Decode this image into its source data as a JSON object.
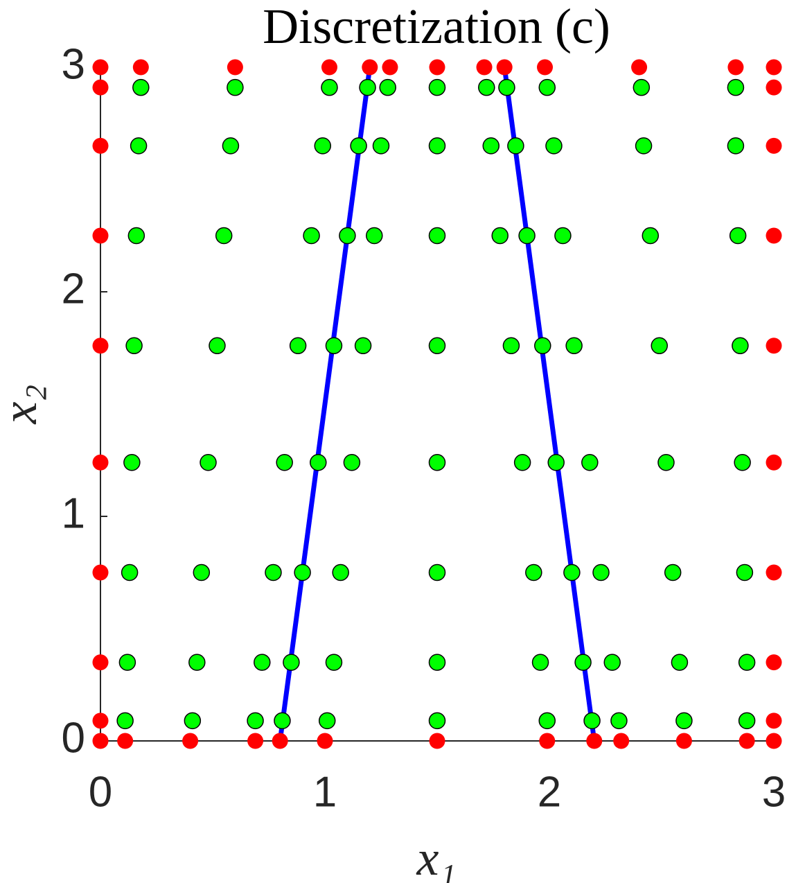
{
  "chart_data": {
    "type": "scatter",
    "title": "Discretization (c)",
    "x_label": "x₁",
    "y_label": "x₂",
    "xlim": [
      0,
      3
    ],
    "ylim": [
      0,
      3
    ],
    "xticks": [
      0,
      1,
      2,
      3
    ],
    "yticks": [
      0,
      1,
      2,
      3
    ],
    "series": [
      {
        "color": "#ff0000",
        "mode": "markers",
        "x": [
          0,
          0.11,
          0.4,
          0.69,
          0.8,
          1,
          1.5,
          1.99,
          2.2,
          2.32,
          2.6,
          2.88,
          3,
          0,
          0.18,
          0.6,
          1.02,
          1.2,
          1.29,
          1.5,
          1.71,
          1.8,
          1.98,
          2.4,
          2.83,
          3,
          0,
          0,
          0,
          0,
          0,
          0,
          0,
          0,
          3,
          3,
          3,
          3,
          3,
          3,
          3,
          3
        ],
        "y": [
          0,
          0,
          0,
          0,
          0,
          0,
          0,
          0,
          0,
          0,
          0,
          0,
          0,
          3,
          3,
          3,
          3,
          3,
          3,
          3,
          3,
          3,
          3,
          3,
          3,
          3,
          2.91,
          2.65,
          2.25,
          1.76,
          1.24,
          0.75,
          0.35,
          0.09,
          2.91,
          2.65,
          2.25,
          1.76,
          1.24,
          0.75,
          0.35,
          0.09
        ]
      },
      {
        "color": "#00ff00",
        "mode": "markers",
        "x": [
          0.18,
          0.6,
          1.02,
          1.19,
          1.28,
          1.5,
          1.72,
          1.81,
          1.99,
          2.41,
          2.83,
          0.17,
          0.58,
          0.99,
          1.15,
          1.25,
          1.5,
          1.74,
          1.85,
          2.02,
          2.42,
          2.83,
          0.16,
          0.55,
          0.94,
          1.1,
          1.22,
          1.5,
          1.78,
          1.9,
          2.06,
          2.45,
          2.84,
          0.15,
          0.52,
          0.88,
          1.04,
          1.17,
          1.5,
          1.83,
          1.97,
          2.11,
          2.49,
          2.85,
          0.14,
          0.48,
          0.82,
          0.97,
          1.12,
          1.5,
          1.88,
          2.03,
          2.18,
          2.52,
          2.86,
          0.13,
          0.45,
          0.77,
          0.9,
          1.07,
          1.5,
          1.93,
          2.1,
          2.23,
          2.55,
          2.87,
          0.12,
          0.43,
          0.72,
          0.85,
          1.04,
          1.5,
          1.96,
          2.15,
          2.28,
          2.58,
          2.88,
          0.11,
          0.41,
          0.69,
          0.81,
          1.01,
          1.5,
          1.99,
          2.19,
          2.31,
          2.6,
          2.88
        ],
        "y": [
          2.91,
          2.91,
          2.91,
          2.91,
          2.91,
          2.91,
          2.91,
          2.91,
          2.91,
          2.91,
          2.91,
          2.65,
          2.65,
          2.65,
          2.65,
          2.65,
          2.65,
          2.65,
          2.65,
          2.65,
          2.65,
          2.65,
          2.25,
          2.25,
          2.25,
          2.25,
          2.25,
          2.25,
          2.25,
          2.25,
          2.25,
          2.25,
          2.25,
          1.76,
          1.76,
          1.76,
          1.76,
          1.76,
          1.76,
          1.76,
          1.76,
          1.76,
          1.76,
          1.76,
          1.24,
          1.24,
          1.24,
          1.24,
          1.24,
          1.24,
          1.24,
          1.24,
          1.24,
          1.24,
          1.24,
          0.75,
          0.75,
          0.75,
          0.75,
          0.75,
          0.75,
          0.75,
          0.75,
          0.75,
          0.75,
          0.75,
          0.35,
          0.35,
          0.35,
          0.35,
          0.35,
          0.35,
          0.35,
          0.35,
          0.35,
          0.35,
          0.35,
          0.09,
          0.09,
          0.09,
          0.09,
          0.09,
          0.09,
          0.09,
          0.09,
          0.09,
          0.09,
          0.09
        ]
      },
      {
        "color": "#0000ff",
        "mode": "line",
        "x": [
          0.8,
          1.2
        ],
        "y": [
          0,
          3
        ]
      },
      {
        "color": "#0000ff",
        "mode": "line",
        "x": [
          2.2,
          1.8
        ],
        "y": [
          0,
          3
        ]
      }
    ]
  }
}
